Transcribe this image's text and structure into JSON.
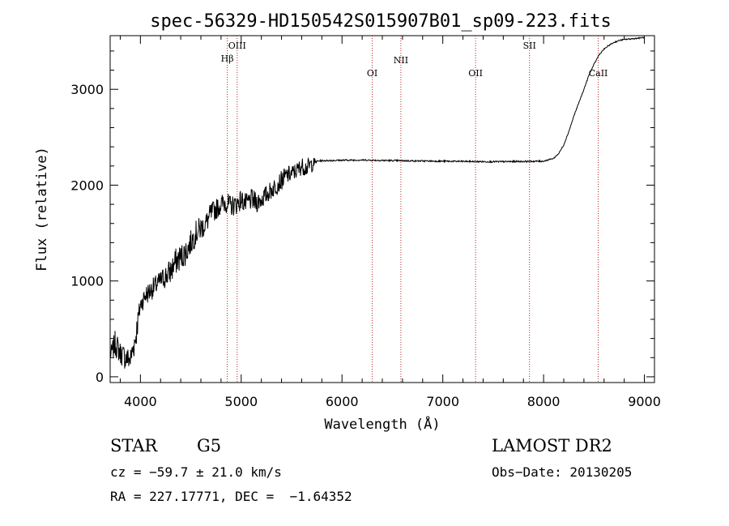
{
  "chart_data": {
    "type": "line",
    "title": "spec-56329-HD150542S015907B01_sp09-223.fits",
    "xlabel": "Wavelength (Å)",
    "ylabel": "Flux (relative)",
    "xlim": [
      3700,
      9100
    ],
    "ylim": [
      -60,
      3560
    ],
    "x_ticks": [
      4000,
      5000,
      6000,
      7000,
      8000,
      9000
    ],
    "y_ticks": [
      0,
      1000,
      2000,
      3000
    ],
    "grid": false,
    "series": [
      {
        "x": [
          3700,
          3750,
          3800,
          3850,
          3900,
          3950,
          4000,
          4050,
          4100,
          4150,
          4200,
          4250,
          4300,
          4350,
          4400,
          4450,
          4500,
          4550,
          4600,
          4650,
          4700,
          4750,
          4800,
          4850,
          4900,
          4950,
          5000,
          5050,
          5100,
          5150,
          5200,
          5250,
          5300,
          5350,
          5400,
          5450,
          5500,
          5550,
          5600,
          5650,
          5700,
          5750,
          5800,
          6000,
          6200,
          6400,
          6600,
          6800,
          7000,
          7200,
          7400,
          7600,
          7800,
          8000,
          8100,
          8150,
          8200,
          8250,
          8300,
          8350,
          8400,
          8450,
          8500,
          8550,
          8600,
          8650,
          8700,
          8750,
          8800,
          8850,
          8900,
          8950,
          8980,
          9000
        ],
        "y": [
          220,
          350,
          250,
          200,
          180,
          400,
          750,
          850,
          900,
          950,
          1000,
          1050,
          1100,
          1200,
          1250,
          1300,
          1400,
          1500,
          1550,
          1600,
          1700,
          1750,
          1800,
          1820,
          1780,
          1800,
          1850,
          1800,
          1850,
          1820,
          1850,
          1900,
          1950,
          2000,
          2050,
          2100,
          2120,
          2150,
          2200,
          2180,
          2220,
          2250,
          2255,
          2260,
          2262,
          2258,
          2255,
          2252,
          2250,
          2248,
          2245,
          2245,
          2248,
          2250,
          2280,
          2330,
          2420,
          2560,
          2720,
          2860,
          3000,
          3150,
          3260,
          3360,
          3420,
          3460,
          3490,
          3510,
          3520,
          3525,
          3530,
          3535,
          3540,
          3540
        ],
        "noise": [
          70,
          140,
          120,
          130,
          120,
          160,
          100,
          110,
          110,
          110,
          110,
          130,
          140,
          140,
          140,
          140,
          130,
          130,
          130,
          120,
          120,
          110,
          110,
          110,
          110,
          110,
          110,
          110,
          110,
          110,
          100,
          100,
          100,
          100,
          100,
          100,
          90,
          90,
          90,
          90,
          90,
          8,
          8,
          8,
          8,
          8,
          8,
          8,
          8,
          8,
          8,
          8,
          8,
          8,
          6,
          6,
          6,
          6,
          6,
          6,
          6,
          6,
          6,
          6,
          6,
          6,
          6,
          6,
          6,
          6,
          6,
          6,
          6,
          6
        ]
      }
    ],
    "lines": [
      {
        "label": "Hβ",
        "x": 4862
      },
      {
        "label": "OIII",
        "x": 4960
      },
      {
        "label": "OI",
        "x": 6300
      },
      {
        "label": "NII",
        "x": 6584
      },
      {
        "label": "OII",
        "x": 7325
      },
      {
        "label": "SII",
        "x": 7860
      },
      {
        "label": "CaII",
        "x": 8542
      }
    ]
  },
  "footer": {
    "object_class": "STAR",
    "subclass": "G5",
    "cz": "cz = −59.7 ± 21.0 km/s",
    "coords": "RA = 227.17771, DEC =  −1.64352",
    "survey": "LAMOST DR2",
    "obs_date": "Obs−Date: 20130205"
  },
  "colors": {
    "spectrum": "#000000",
    "line_markers": "#b22222",
    "axes": "#000000"
  }
}
